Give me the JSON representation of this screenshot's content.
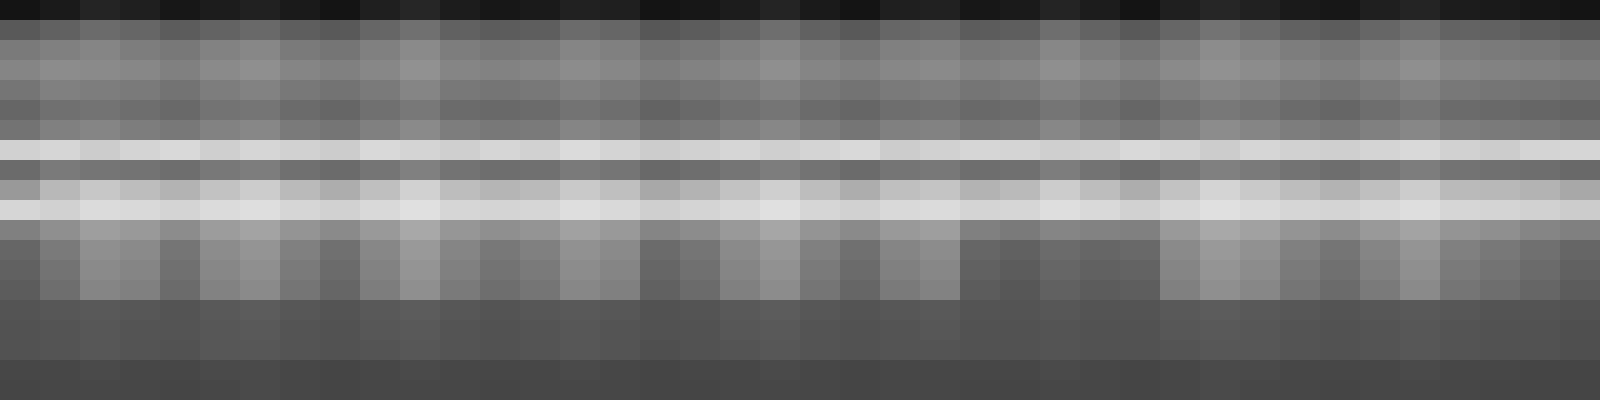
{
  "chart_data": {
    "type": "heatmap",
    "tick_labels": false,
    "zlim": [
      0,
      100
    ],
    "cells": [
      [
        8,
        10,
        14,
        12,
        9,
        11,
        13,
        10,
        8,
        12,
        15,
        11,
        9,
        10,
        13,
        12,
        8,
        9,
        11,
        14,
        10,
        8,
        12,
        13,
        9,
        10,
        14,
        11,
        8,
        12,
        15,
        13,
        10,
        9,
        12,
        14,
        11,
        10,
        9,
        8
      ],
      [
        35,
        38,
        42,
        40,
        36,
        39,
        41,
        37,
        35,
        40,
        44,
        38,
        36,
        37,
        42,
        40,
        34,
        36,
        39,
        43,
        38,
        35,
        40,
        41,
        36,
        37,
        43,
        39,
        35,
        40,
        45,
        42,
        38,
        36,
        40,
        43,
        39,
        38,
        36,
        34
      ],
      [
        48,
        50,
        52,
        49,
        47,
        51,
        53,
        48,
        46,
        50,
        54,
        49,
        47,
        48,
        52,
        50,
        45,
        47,
        50,
        53,
        49,
        46,
        50,
        51,
        47,
        48,
        53,
        49,
        46,
        50,
        55,
        52,
        49,
        47,
        50,
        53,
        49,
        48,
        47,
        45
      ],
      [
        52,
        55,
        54,
        53,
        50,
        54,
        56,
        52,
        50,
        53,
        57,
        52,
        51,
        52,
        55,
        53,
        49,
        51,
        53,
        56,
        52,
        50,
        53,
        54,
        51,
        52,
        56,
        53,
        50,
        54,
        57,
        55,
        52,
        50,
        53,
        56,
        52,
        51,
        50,
        49
      ],
      [
        46,
        50,
        49,
        48,
        45,
        49,
        51,
        47,
        45,
        48,
        52,
        47,
        46,
        47,
        50,
        48,
        44,
        46,
        48,
        51,
        47,
        45,
        48,
        49,
        46,
        47,
        51,
        48,
        45,
        49,
        52,
        50,
        47,
        45,
        48,
        51,
        47,
        46,
        45,
        44
      ],
      [
        40,
        44,
        45,
        43,
        41,
        45,
        46,
        42,
        40,
        44,
        47,
        42,
        41,
        42,
        45,
        43,
        39,
        41,
        44,
        46,
        42,
        40,
        43,
        44,
        41,
        42,
        46,
        43,
        40,
        44,
        47,
        45,
        42,
        40,
        43,
        46,
        42,
        41,
        40,
        39
      ],
      [
        45,
        50,
        52,
        49,
        47,
        51,
        53,
        48,
        46,
        50,
        54,
        49,
        47,
        48,
        52,
        50,
        45,
        47,
        50,
        53,
        49,
        46,
        50,
        51,
        47,
        48,
        53,
        49,
        46,
        50,
        55,
        52,
        49,
        47,
        50,
        53,
        49,
        48,
        47,
        45
      ],
      [
        82,
        84,
        80,
        83,
        85,
        81,
        84,
        82,
        80,
        85,
        83,
        81,
        84,
        82,
        86,
        83,
        80,
        82,
        84,
        81,
        83,
        85,
        80,
        82,
        84,
        83,
        81,
        82,
        85,
        83,
        80,
        84,
        82,
        81,
        83,
        85,
        82,
        80,
        83,
        84
      ],
      [
        42,
        48,
        46,
        45,
        43,
        47,
        49,
        44,
        42,
        46,
        50,
        45,
        43,
        44,
        48,
        46,
        41,
        43,
        46,
        49,
        45,
        42,
        46,
        47,
        43,
        44,
        49,
        45,
        42,
        46,
        50,
        48,
        45,
        43,
        46,
        49,
        45,
        44,
        43,
        41
      ],
      [
        60,
        72,
        78,
        74,
        70,
        76,
        80,
        73,
        68,
        75,
        82,
        74,
        71,
        73,
        79,
        75,
        66,
        70,
        76,
        81,
        74,
        68,
        75,
        77,
        70,
        73,
        80,
        74,
        68,
        76,
        83,
        79,
        74,
        70,
        75,
        80,
        73,
        72,
        70,
        66
      ],
      [
        84,
        82,
        86,
        85,
        83,
        86,
        87,
        84,
        82,
        85,
        88,
        84,
        83,
        84,
        87,
        85,
        81,
        83,
        85,
        88,
        84,
        82,
        85,
        86,
        83,
        84,
        87,
        85,
        82,
        85,
        88,
        86,
        84,
        83,
        85,
        87,
        84,
        83,
        82,
        80
      ],
      [
        50,
        56,
        62,
        60,
        55,
        61,
        64,
        58,
        54,
        60,
        66,
        59,
        56,
        58,
        63,
        60,
        52,
        55,
        60,
        65,
        58,
        54,
        60,
        62,
        50,
        48,
        52,
        51,
        50,
        60,
        66,
        63,
        58,
        55,
        60,
        64,
        58,
        56,
        52,
        50
      ],
      [
        40,
        48,
        56,
        54,
        46,
        55,
        58,
        50,
        44,
        53,
        60,
        52,
        47,
        50,
        57,
        54,
        42,
        46,
        54,
        59,
        50,
        44,
        52,
        55,
        40,
        38,
        42,
        40,
        41,
        54,
        60,
        57,
        50,
        46,
        52,
        58,
        50,
        47,
        44,
        40
      ],
      [
        38,
        45,
        54,
        52,
        44,
        53,
        56,
        48,
        42,
        51,
        58,
        50,
        45,
        48,
        55,
        52,
        40,
        44,
        52,
        57,
        48,
        42,
        50,
        53,
        38,
        36,
        40,
        38,
        39,
        52,
        58,
        55,
        48,
        44,
        50,
        56,
        48,
        45,
        42,
        38
      ],
      [
        36,
        43,
        52,
        50,
        42,
        51,
        54,
        46,
        40,
        49,
        56,
        48,
        43,
        46,
        53,
        50,
        38,
        42,
        50,
        55,
        46,
        40,
        48,
        51,
        36,
        34,
        38,
        36,
        37,
        50,
        56,
        53,
        46,
        42,
        48,
        54,
        46,
        43,
        40,
        36
      ],
      [
        33,
        34,
        35,
        34,
        33,
        35,
        36,
        34,
        33,
        35,
        36,
        34,
        33,
        34,
        35,
        34,
        32,
        33,
        35,
        36,
        34,
        33,
        34,
        35,
        33,
        33,
        34,
        33,
        33,
        35,
        36,
        35,
        34,
        33,
        34,
        35,
        34,
        33,
        33,
        32
      ],
      [
        32,
        33,
        34,
        33,
        33,
        34,
        35,
        33,
        32,
        34,
        35,
        33,
        32,
        33,
        34,
        33,
        32,
        32,
        34,
        35,
        33,
        32,
        33,
        34,
        32,
        32,
        33,
        32,
        32,
        34,
        35,
        34,
        33,
        32,
        33,
        34,
        33,
        32,
        32,
        31
      ],
      [
        32,
        33,
        34,
        33,
        32,
        34,
        34,
        33,
        32,
        33,
        34,
        33,
        32,
        33,
        34,
        33,
        31,
        32,
        33,
        34,
        33,
        32,
        33,
        33,
        32,
        32,
        33,
        32,
        32,
        33,
        34,
        34,
        33,
        32,
        33,
        34,
        33,
        32,
        32,
        31
      ],
      [
        28,
        28,
        29,
        28,
        28,
        29,
        29,
        28,
        27,
        28,
        29,
        28,
        28,
        28,
        29,
        28,
        27,
        28,
        28,
        29,
        28,
        27,
        28,
        28,
        28,
        28,
        29,
        28,
        27,
        28,
        29,
        29,
        28,
        28,
        28,
        29,
        28,
        28,
        27,
        27
      ],
      [
        27,
        28,
        28,
        28,
        27,
        28,
        29,
        28,
        27,
        28,
        28,
        28,
        27,
        28,
        28,
        28,
        27,
        27,
        28,
        28,
        28,
        27,
        28,
        28,
        27,
        27,
        28,
        28,
        27,
        28,
        29,
        28,
        28,
        27,
        28,
        28,
        28,
        27,
        27,
        27
      ]
    ]
  }
}
